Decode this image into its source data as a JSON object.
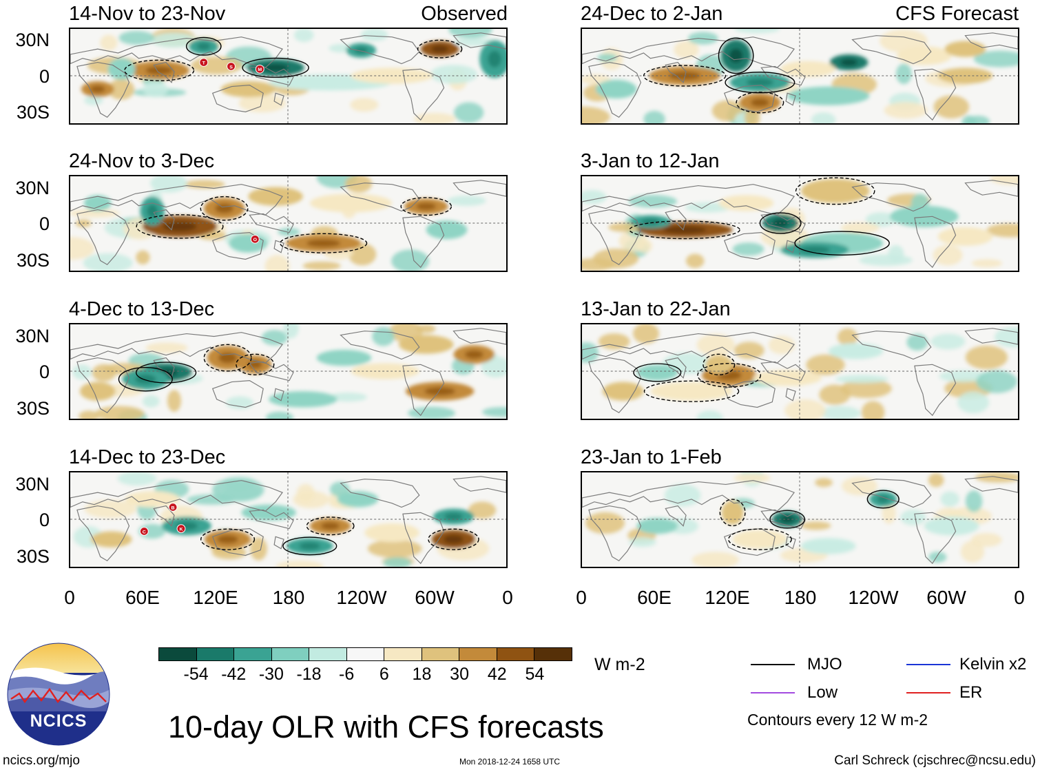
{
  "panels": [
    {
      "title": "14-Nov to 23-Nov",
      "tag": "Observed"
    },
    {
      "title": "24-Nov to 3-Dec",
      "tag": ""
    },
    {
      "title": "4-Dec to 13-Dec",
      "tag": ""
    },
    {
      "title": "14-Dec to 23-Dec",
      "tag": ""
    },
    {
      "title": "24-Dec to 2-Jan",
      "tag": "CFS Forecast"
    },
    {
      "title": "3-Jan to 12-Jan",
      "tag": ""
    },
    {
      "title": "13-Jan to 22-Jan",
      "tag": ""
    },
    {
      "title": "23-Jan to 1-Feb",
      "tag": ""
    }
  ],
  "lat_labels": [
    "30N",
    "0",
    "30S"
  ],
  "lon_labels": [
    "0",
    "60E",
    "120E",
    "180",
    "120W",
    "60W",
    "0"
  ],
  "colorbar": {
    "colors": [
      "#0b4a3c",
      "#1a7a6a",
      "#3aa393",
      "#7fcfbf",
      "#c2ebe1",
      "#f7f7f7",
      "#f6e8c3",
      "#dfc27d",
      "#c38a3a",
      "#8f5312",
      "#563008"
    ],
    "labels": [
      "-54",
      "-42",
      "-30",
      "-18",
      "-6",
      "6",
      "18",
      "30",
      "42",
      "54"
    ],
    "units": "W m-2"
  },
  "legend": {
    "items": [
      {
        "label": "MJO",
        "color": "#000000"
      },
      {
        "label": "Kelvin x2",
        "color": "#1a35d6"
      },
      {
        "label": "Low",
        "color": "#a24ae0"
      },
      {
        "label": "ER",
        "color": "#e02020"
      }
    ],
    "note": "Contours every 12 W m-2"
  },
  "logo_text": "NCICS",
  "main_title": "10-day OLR with CFS forecasts",
  "footer": {
    "left": "ncics.org/mjo",
    "center": "Mon 2018-12-24 1658 UTC",
    "right": "Carl Schreck (cjschrec@ncsu.edu)"
  },
  "storm_markers": [
    {
      "panel": 0,
      "labels": [
        "T",
        "S",
        "M"
      ]
    },
    {
      "panel": 1,
      "labels": [
        "O"
      ]
    },
    {
      "panel": 3,
      "labels": [
        "B",
        "K",
        "C"
      ]
    }
  ]
}
